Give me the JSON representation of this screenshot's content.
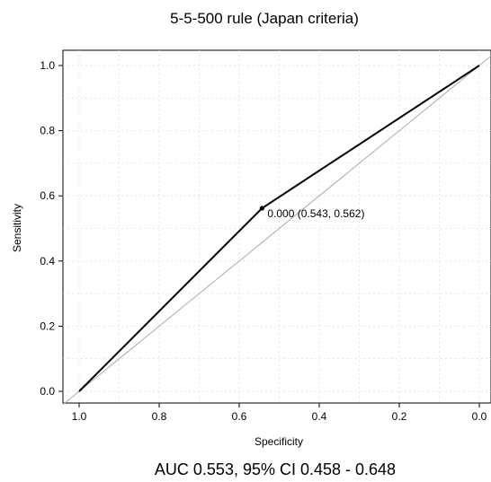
{
  "chart_data": {
    "type": "line",
    "title": "5-5-500 rule (Japan criteria)",
    "xlabel": "Specificity",
    "ylabel": "Sensitivity",
    "x_reversed": true,
    "xlim": [
      1.0,
      0.0
    ],
    "ylim": [
      0.0,
      1.0
    ],
    "xticks": [
      "1.0",
      "0.8",
      "0.6",
      "0.4",
      "0.2",
      "0.0"
    ],
    "yticks": [
      "0.0",
      "0.2",
      "0.4",
      "0.6",
      "0.8",
      "1.0"
    ],
    "grid": true,
    "series": [
      {
        "specificity": [
          1.0,
          0.543,
          0.0
        ],
        "sensitivity": [
          0.0,
          0.562,
          1.0
        ],
        "color": "#000000"
      }
    ],
    "reference_line": {
      "specificity": [
        1.0,
        0.0
      ],
      "sensitivity": [
        0.0,
        1.0
      ],
      "color": "#aaaaaa"
    },
    "threshold_point": {
      "specificity": 0.543,
      "sensitivity": 0.562,
      "label": "0.000 (0.543, 0.562)"
    },
    "caption": "AUC 0.553, 95% CI 0.458 - 0.648"
  }
}
